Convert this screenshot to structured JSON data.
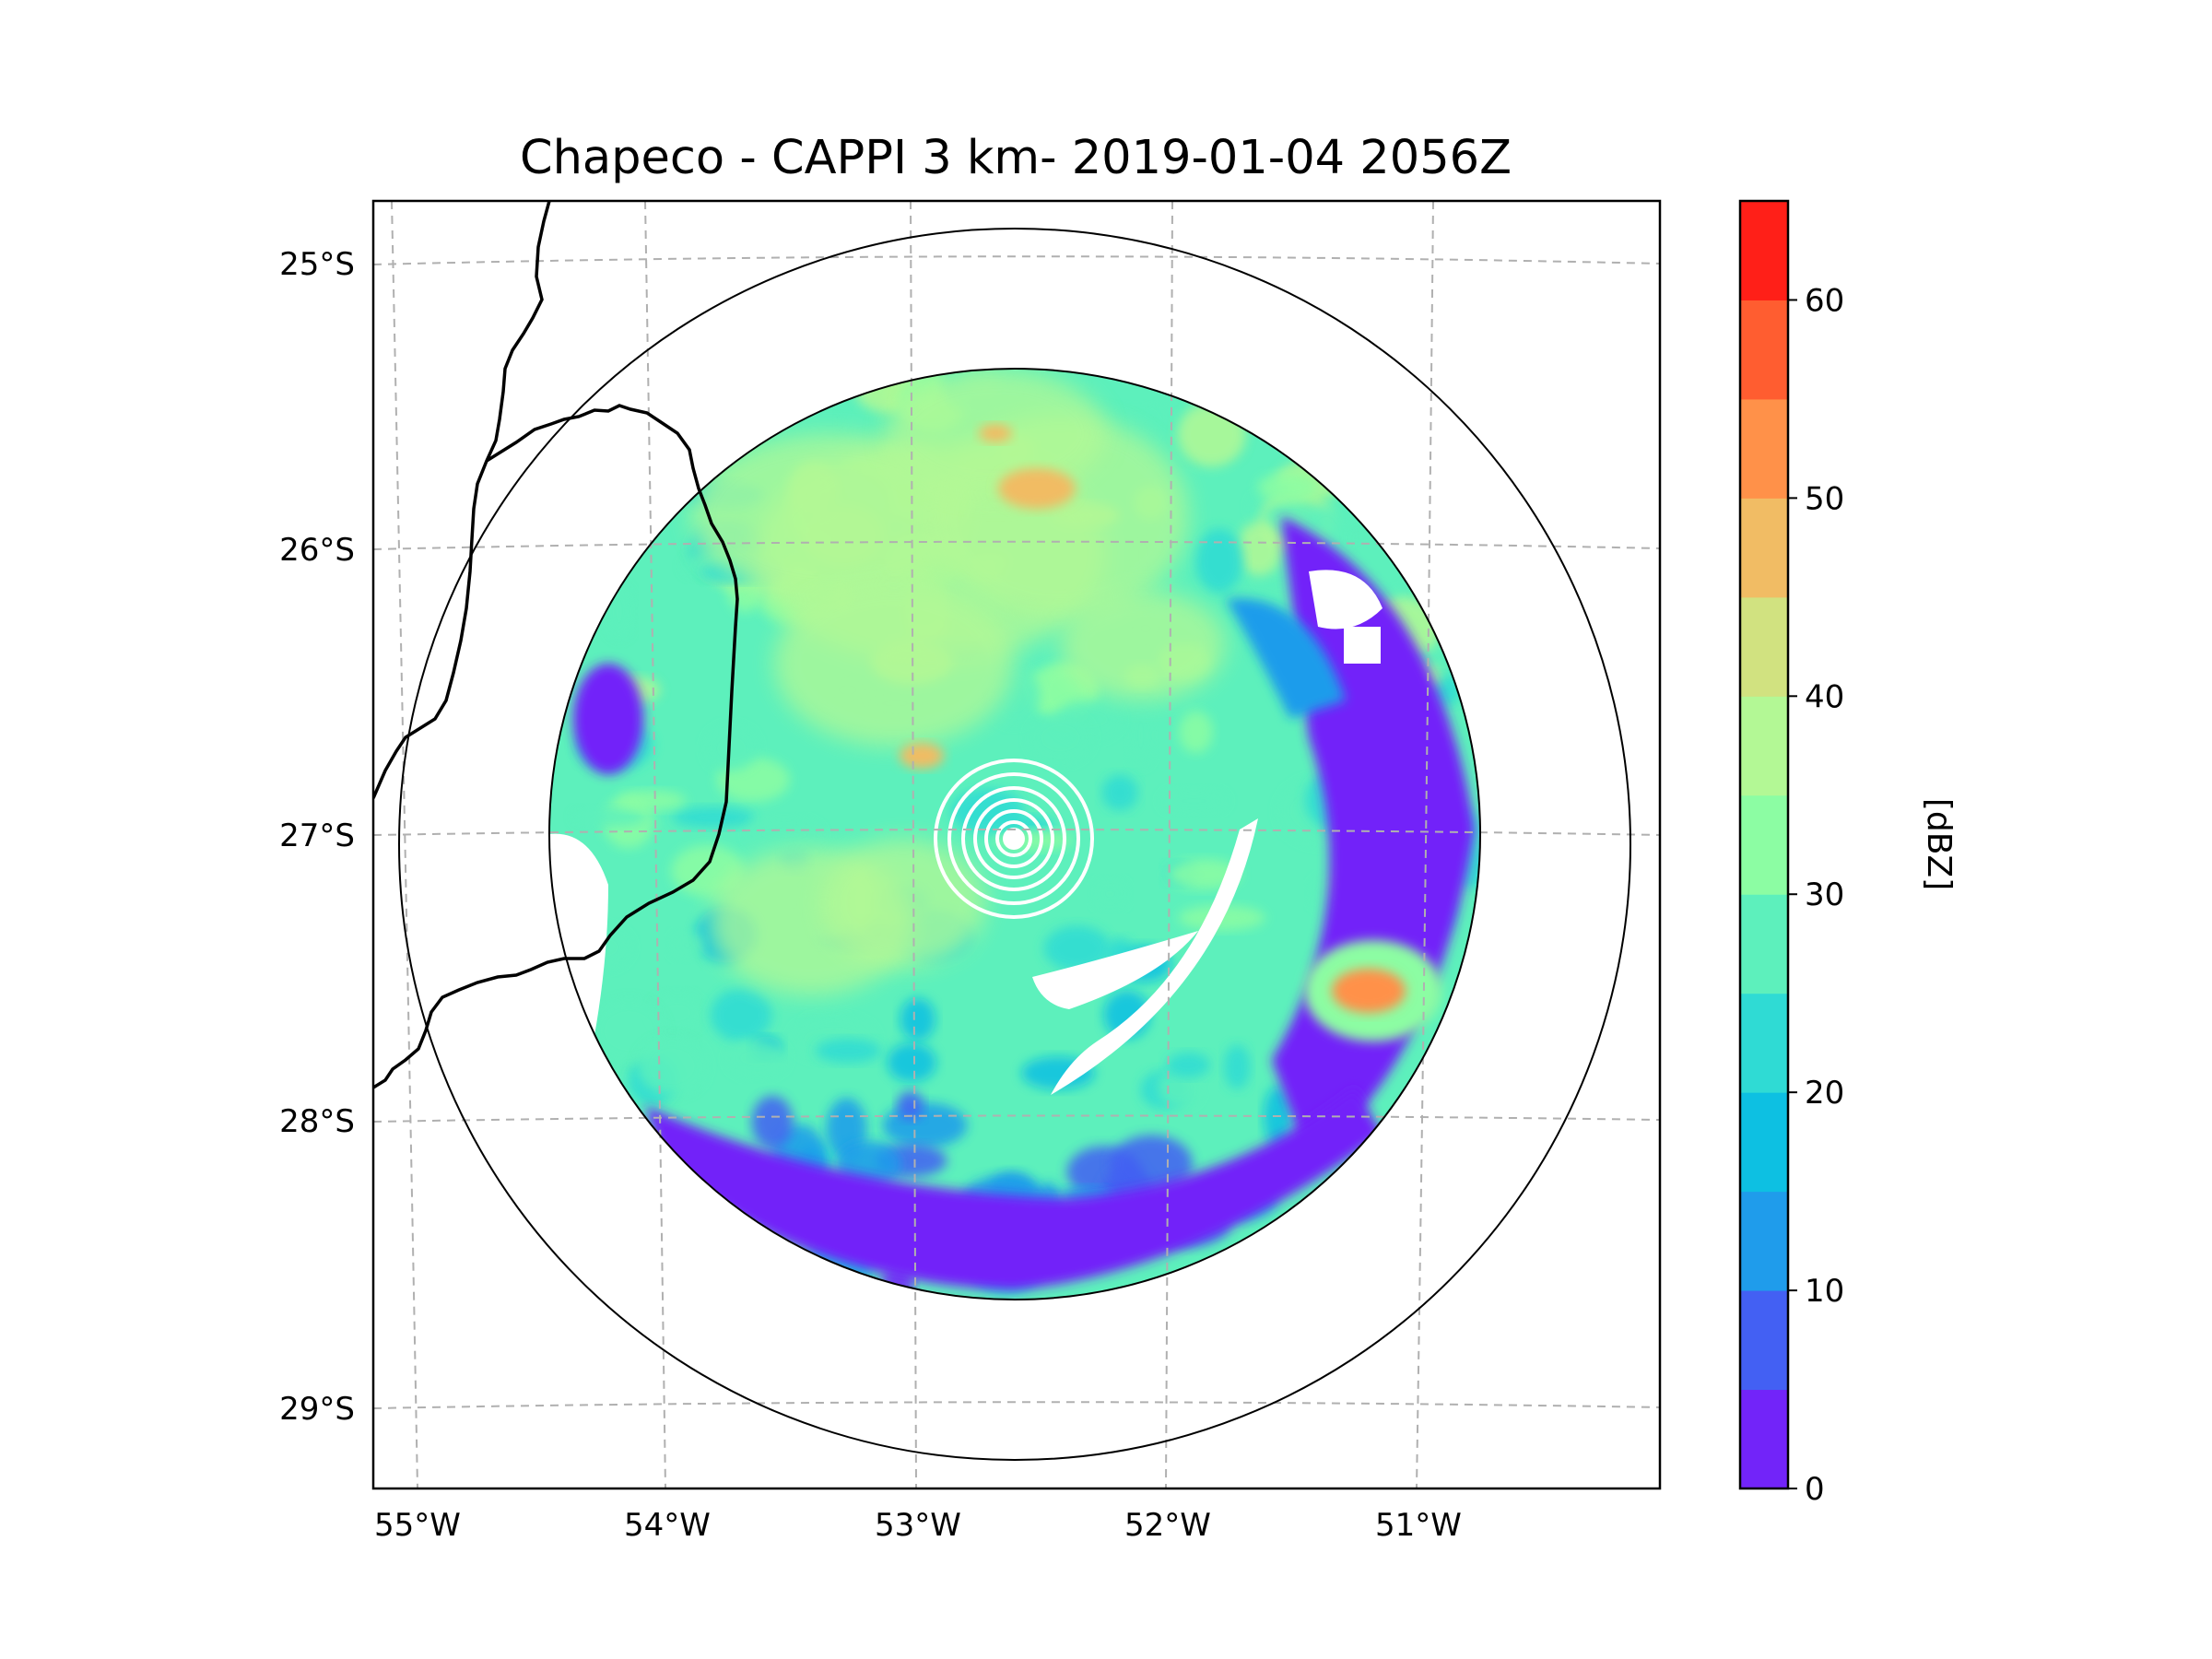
{
  "chart_data": {
    "type": "heatmap",
    "subtype": "radar-ppi-map",
    "title": "Chapeco - CAPPI 3 km- 2019-01-04 2056Z",
    "xlabel": "",
    "ylabel": "",
    "x_ticks": [
      "55°W",
      "54°W",
      "53°W",
      "52°W",
      "51°W"
    ],
    "y_ticks": [
      "25°S",
      "26°S",
      "27°S",
      "28°S",
      "29°S"
    ],
    "x_range_deg_lon": [
      -55.2,
      -50.05
    ],
    "y_range_deg_lat": [
      -29.3,
      -24.8
    ],
    "radar_center": {
      "lon": -52.6,
      "lat": -27.02
    },
    "range_rings_km": [
      200,
      240
    ],
    "grid": true,
    "colorbar": {
      "label": "[dBZ]",
      "min": 0,
      "max": 65,
      "step": 5,
      "tick_values": [
        0,
        10,
        20,
        30,
        40,
        50,
        60
      ],
      "tick_labels": [
        "0",
        "10",
        "20",
        "30",
        "40",
        "50",
        "60"
      ],
      "colors": [
        "#7224f9",
        "#4360f3",
        "#1f9ceb",
        "#0dc0e2",
        "#2fdbd4",
        "#5df0bc",
        "#8cfda3",
        "#b3f895",
        "#d1e280",
        "#f1bc64",
        "#ff9149",
        "#ff5d30",
        "#ff1f18"
      ]
    },
    "regions": [
      {
        "name": "background-precip",
        "dbz": 27
      },
      {
        "name": "northern-band",
        "dbz": 36
      },
      {
        "name": "north-hotspot",
        "dbz": 48
      },
      {
        "name": "southeast-cell",
        "dbz": 52
      },
      {
        "name": "southern-edge-clutter",
        "dbz": 3
      },
      {
        "name": "eastern-edge",
        "dbz": 4
      }
    ]
  }
}
